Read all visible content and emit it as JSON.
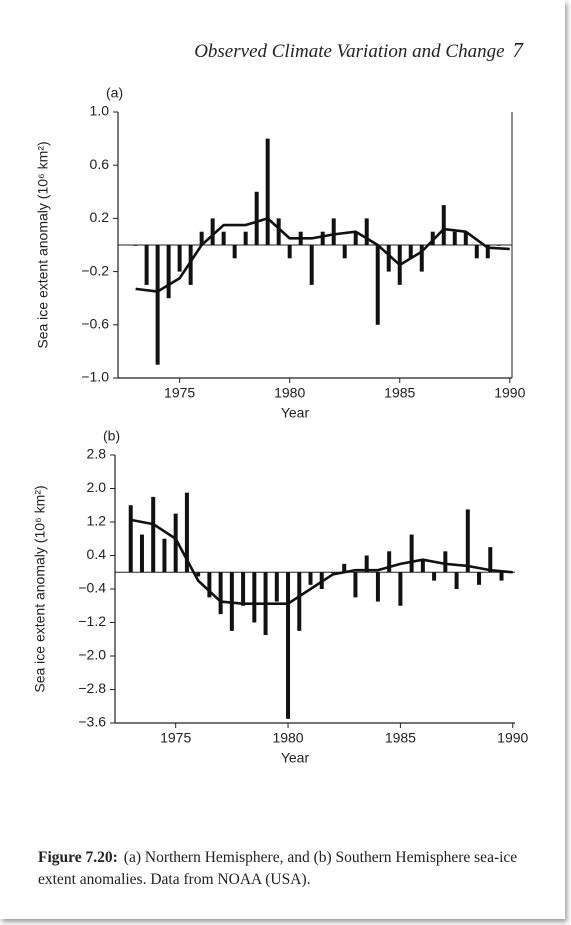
{
  "header": {
    "title": "Observed Climate Variation and Change",
    "page_number": "7"
  },
  "chart_data": [
    {
      "type": "bar",
      "panel_label": "(a)",
      "xlabel": "Year",
      "ylabel": "Sea ice extent anomaly (10⁶ km²)",
      "color": "#111111",
      "x": [
        1973.0,
        1973.5,
        1974.0,
        1974.5,
        1975.0,
        1975.5,
        1976.0,
        1976.5,
        1977.0,
        1977.5,
        1978.0,
        1978.5,
        1979.0,
        1979.5,
        1980.0,
        1980.5,
        1981.0,
        1981.5,
        1982.0,
        1982.5,
        1983.0,
        1983.5,
        1984.0,
        1984.5,
        1985.0,
        1985.5,
        1986.0,
        1986.5,
        1987.0,
        1987.5,
        1988.0,
        1988.5,
        1989.0,
        1989.5
      ],
      "values": [
        0.0,
        -0.3,
        -0.9,
        -0.4,
        -0.2,
        -0.3,
        0.1,
        0.2,
        0.1,
        -0.1,
        0.1,
        0.4,
        0.8,
        0.2,
        -0.1,
        0.1,
        -0.3,
        0.1,
        0.2,
        -0.1,
        0.1,
        0.2,
        -0.6,
        -0.2,
        -0.3,
        -0.1,
        -0.2,
        0.1,
        0.3,
        0.1,
        0.1,
        -0.1,
        -0.1,
        0.0
      ],
      "trend": {
        "x": [
          1973,
          1974,
          1975,
          1976,
          1977,
          1978,
          1979,
          1980,
          1981,
          1982,
          1983,
          1984,
          1985,
          1986,
          1987,
          1988,
          1989,
          1990
        ],
        "values": [
          -0.33,
          -0.35,
          -0.25,
          0.0,
          0.15,
          0.15,
          0.2,
          0.05,
          0.05,
          0.08,
          0.1,
          0.0,
          -0.15,
          -0.05,
          0.12,
          0.1,
          -0.02,
          -0.03
        ]
      },
      "xlim": [
        1972.2,
        1990.1
      ],
      "xticks": [
        1975,
        1980,
        1985,
        1990
      ],
      "ylim": [
        -1,
        1
      ],
      "yticks": [
        {
          "value": -1,
          "label": "−1.0"
        },
        {
          "value": -0.6,
          "label": "−0.6"
        },
        {
          "value": -0.2,
          "label": "−0.2"
        },
        0.2,
        0.6,
        {
          "value": 1,
          "label": "1.0"
        }
      ]
    },
    {
      "type": "bar",
      "panel_label": "(b)",
      "xlabel": "Year",
      "ylabel": "Sea ice extent anomaly (10⁶ km²)",
      "color": "#111111",
      "x": [
        1973.0,
        1973.5,
        1974.0,
        1974.5,
        1975.0,
        1975.5,
        1976.0,
        1976.5,
        1977.0,
        1977.5,
        1978.0,
        1978.5,
        1979.0,
        1979.5,
        1980.0,
        1980.5,
        1981.0,
        1981.5,
        1982.0,
        1982.5,
        1983.0,
        1983.5,
        1984.0,
        1984.5,
        1985.0,
        1985.5,
        1986.0,
        1986.5,
        1987.0,
        1987.5,
        1988.0,
        1988.5,
        1989.0,
        1989.5
      ],
      "values": [
        1.6,
        0.9,
        1.8,
        0.8,
        1.4,
        1.9,
        -0.1,
        -0.6,
        -1.0,
        -1.4,
        -0.8,
        -1.2,
        -1.5,
        -0.7,
        -3.5,
        -1.4,
        -0.3,
        -0.4,
        0.0,
        0.2,
        -0.6,
        0.4,
        -0.7,
        0.5,
        -0.8,
        0.9,
        0.3,
        -0.2,
        0.5,
        -0.4,
        1.5,
        -0.3,
        0.6,
        -0.2
      ],
      "trend": {
        "x": [
          1973,
          1974,
          1975,
          1976,
          1977,
          1978,
          1979,
          1980,
          1981,
          1982,
          1983,
          1984,
          1985,
          1986,
          1987,
          1988,
          1989,
          1990
        ],
        "values": [
          1.25,
          1.15,
          0.8,
          -0.2,
          -0.7,
          -0.75,
          -0.75,
          -0.75,
          -0.4,
          -0.05,
          0.05,
          0.05,
          0.2,
          0.3,
          0.2,
          0.15,
          0.05,
          0.0
        ]
      },
      "xlim": [
        1972.3,
        1990.1
      ],
      "xticks": [
        1975,
        1980,
        1985,
        1990
      ],
      "ylim": [
        -3.6,
        2.8
      ],
      "yticks": [
        {
          "value": -3.6,
          "label": "−3.6"
        },
        {
          "value": -2.8,
          "label": "−2.8"
        },
        {
          "value": -2,
          "label": "−2.0"
        },
        {
          "value": -1.2,
          "label": "−1.2"
        },
        {
          "value": -0.4,
          "label": "−0.4"
        },
        0.4,
        1.2,
        {
          "value": 2,
          "label": "2.0"
        },
        2.8
      ]
    }
  ],
  "caption": {
    "label": "Figure 7.20:",
    "text": "(a) Northern Hemisphere, and (b) Southern Hemisphere sea-ice extent anomalies. Data from NOAA (USA)."
  }
}
